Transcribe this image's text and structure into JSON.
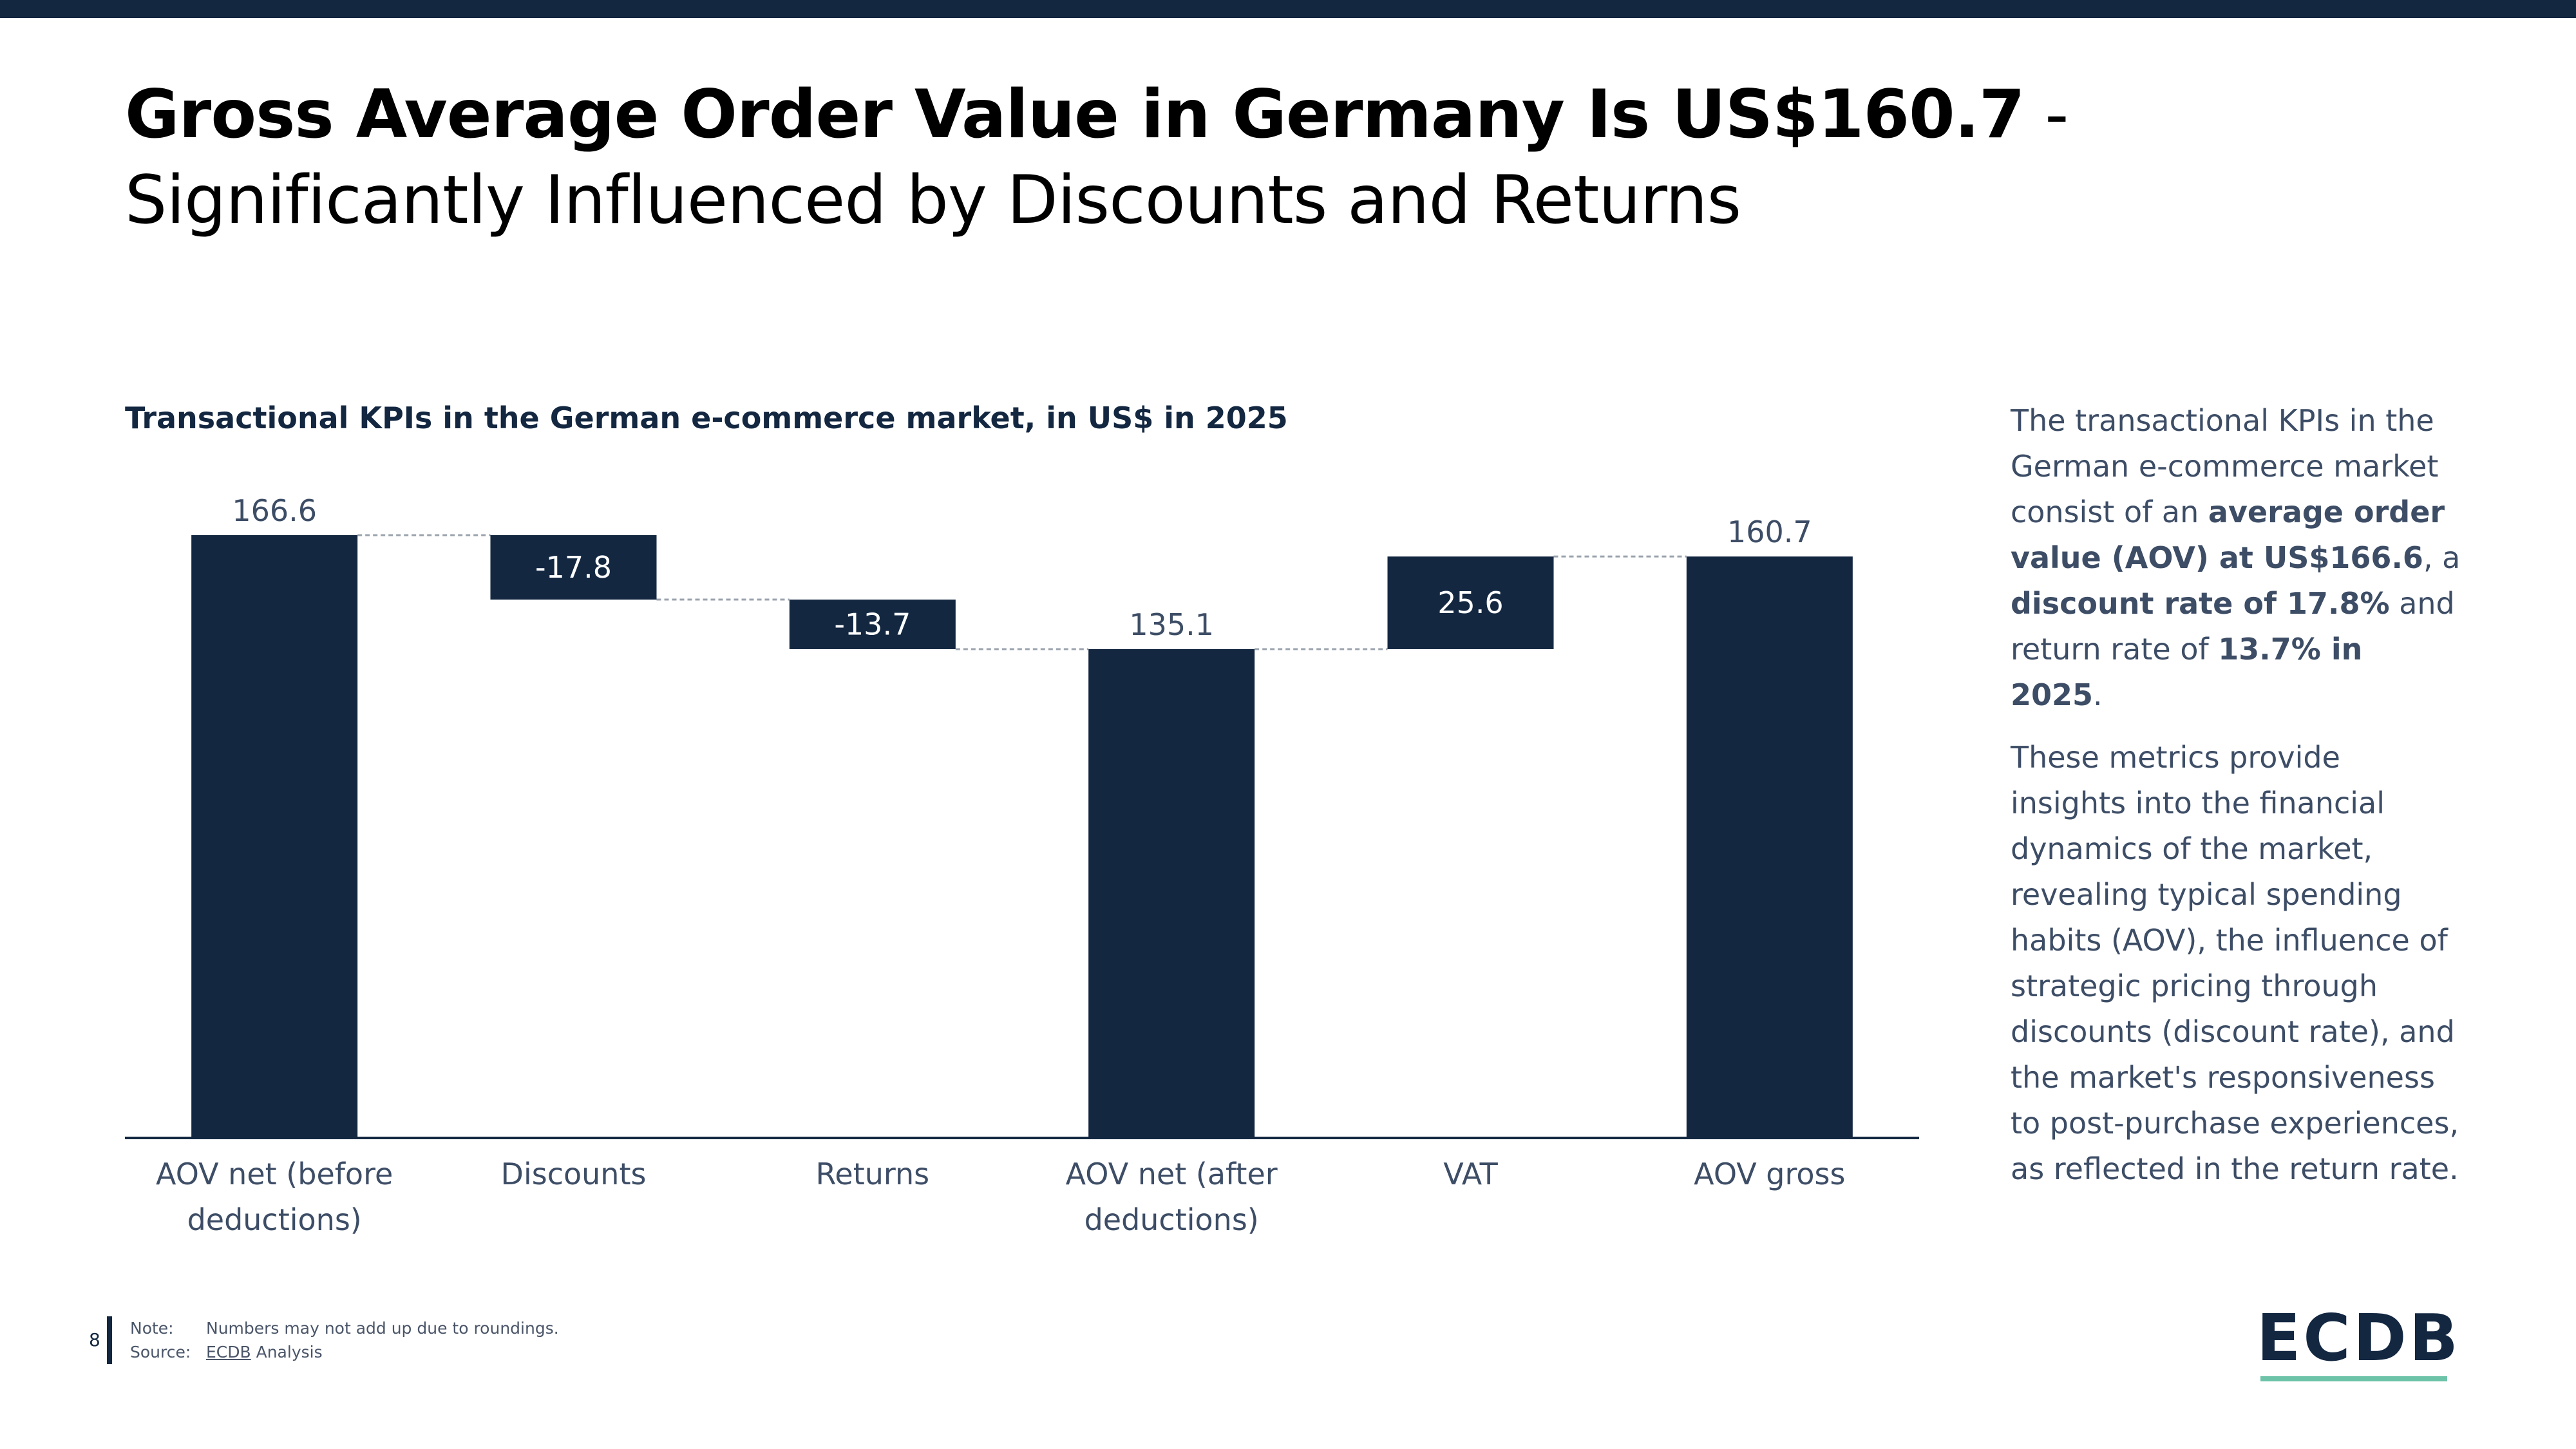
{
  "header": {
    "title_bold": "Gross Average Order Value in Germany Is US$160.7",
    "title_rest": " - Significantly Influenced by Discounts and Returns"
  },
  "chart_title": "Transactional KPIs in the German e-commerce market, in US$ in 2025",
  "chart_data": {
    "type": "waterfall",
    "title": "Transactional KPIs in the German e-commerce market, in US$ in 2025",
    "categories": [
      "AOV net (before deductions)",
      "Discounts",
      "Returns",
      "AOV net (after deductions)",
      "VAT",
      "AOV gross"
    ],
    "category_lines": [
      [
        "AOV net (before",
        "deductions)"
      ],
      [
        "Discounts"
      ],
      [
        "Returns"
      ],
      [
        "AOV net (after",
        "deductions)"
      ],
      [
        "VAT"
      ],
      [
        "AOV gross"
      ]
    ],
    "values": [
      166.6,
      -17.8,
      -13.7,
      135.1,
      25.6,
      160.7
    ],
    "labels": [
      "166.6",
      "-17.8",
      "-13.7",
      "135.1",
      "25.6",
      "160.7"
    ],
    "kinds": [
      "total",
      "delta",
      "delta",
      "total",
      "delta",
      "total"
    ],
    "ylim": [
      0,
      166.6
    ],
    "colors": {
      "bar": "#132741",
      "label_inside": "#ffffff",
      "label_outside": "#3d4d66",
      "connector": "#9aa3ad"
    }
  },
  "side_text": {
    "p1_a": "The transactional KPIs in the German e-commerce market consist of an ",
    "p1_b": "average order value (AOV) at US$166.6",
    "p1_c": ", a ",
    "p1_d": "discount rate of 17.8%",
    "p1_e": " and return rate of ",
    "p1_f": "13.7% in 2025",
    "p1_g": ".",
    "p2": "These metrics provide insights into the financial dynamics of the market, revealing typical spending habits (AOV), the influence of strategic pricing through discounts (discount rate), and the market's responsiveness to post-purchase experiences, as reflected in the return rate."
  },
  "footer": {
    "page_number": "8",
    "note_label": "Note:",
    "note_text": "Numbers may not add up due to roundings.",
    "source_label": "Source:",
    "source_link": "ECDB",
    "source_rest": " Analysis"
  },
  "logo": {
    "text": "ECDB",
    "accent_color": "#6cc3a8"
  }
}
